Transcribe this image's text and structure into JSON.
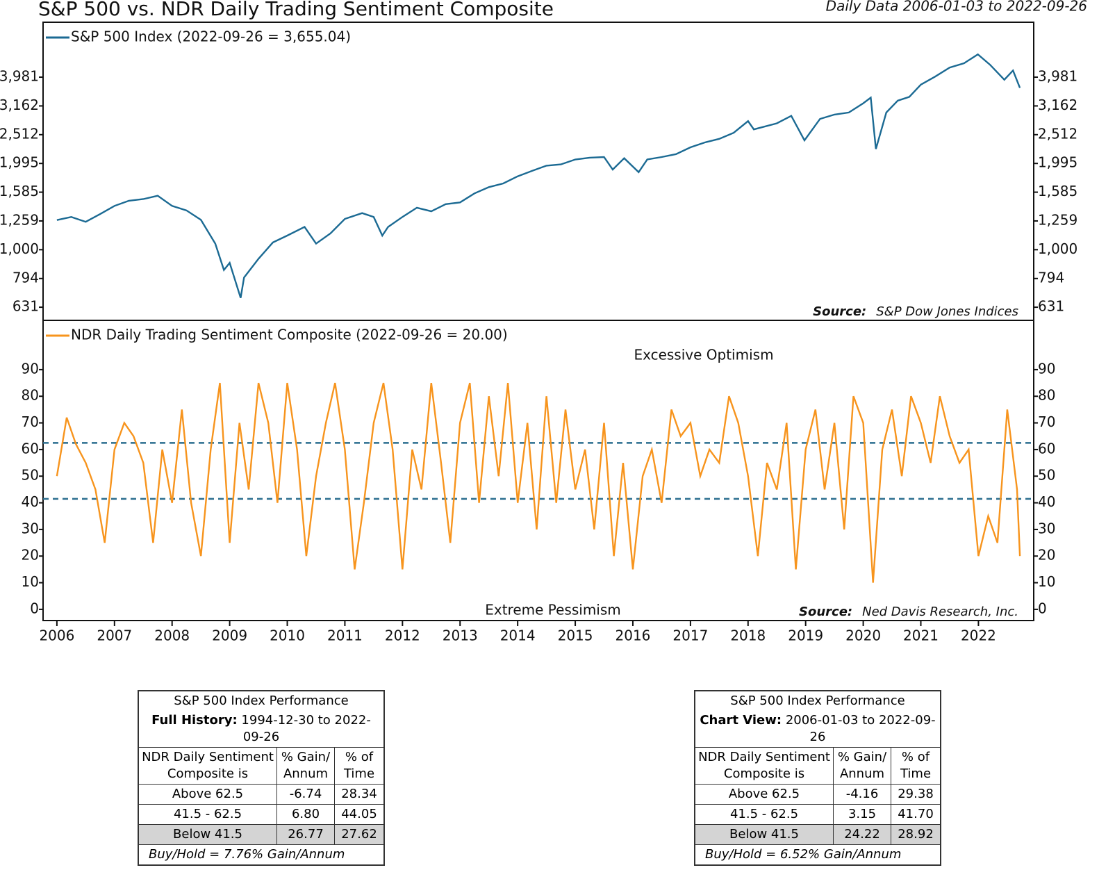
{
  "chart_data": [
    {
      "type": "line",
      "title": "S&P 500 vs. NDR Daily Trading Sentiment Composite",
      "subtitle": "Daily Data 2006-01-03 to 2022-09-26",
      "log_scale": true,
      "xlim": [
        2005.76,
        2022.96
      ],
      "ylim": [
        568,
        6180
      ],
      "yticks": [
        631,
        794,
        {
          "value": 1000,
          "label": "1,000"
        },
        {
          "value": 1259,
          "label": "1,259"
        },
        {
          "value": 1585,
          "label": "1,585"
        },
        {
          "value": 1995,
          "label": "1,995"
        },
        {
          "value": 2512,
          "label": "2,512"
        },
        {
          "value": 3162,
          "label": "3,162"
        },
        {
          "value": 3981,
          "label": "3,981"
        }
      ],
      "source": {
        "label": "Source:",
        "text": "S&P Dow Jones Indices"
      },
      "series": [
        {
          "name": "S&P 500 Index (2022-09-26 = 3,655.04)",
          "color": "#1b6a93",
          "x": [
            2006.0,
            2006.25,
            2006.5,
            2006.75,
            2007.0,
            2007.25,
            2007.5,
            2007.75,
            2008.0,
            2008.25,
            2008.5,
            2008.75,
            2008.9,
            2009.0,
            2009.19,
            2009.25,
            2009.5,
            2009.75,
            2010.0,
            2010.3,
            2010.5,
            2010.75,
            2011.0,
            2011.3,
            2011.5,
            2011.65,
            2011.75,
            2012.0,
            2012.25,
            2012.5,
            2012.75,
            2013.0,
            2013.25,
            2013.5,
            2013.75,
            2014.0,
            2014.25,
            2014.5,
            2014.75,
            2015.0,
            2015.25,
            2015.5,
            2015.65,
            2015.85,
            2016.1,
            2016.25,
            2016.5,
            2016.75,
            2017.0,
            2017.25,
            2017.5,
            2017.75,
            2018.0,
            2018.1,
            2018.5,
            2018.75,
            2018.98,
            2019.25,
            2019.5,
            2019.75,
            2020.0,
            2020.13,
            2020.22,
            2020.4,
            2020.6,
            2020.8,
            2021.0,
            2021.25,
            2021.5,
            2021.75,
            2021.99,
            2022.2,
            2022.45,
            2022.6,
            2022.72
          ],
          "values": [
            1268,
            1300,
            1250,
            1330,
            1420,
            1480,
            1500,
            1540,
            1420,
            1370,
            1270,
            1050,
            850,
            900,
            680,
            800,
            930,
            1060,
            1120,
            1200,
            1050,
            1140,
            1280,
            1340,
            1300,
            1120,
            1200,
            1300,
            1400,
            1360,
            1440,
            1460,
            1570,
            1650,
            1700,
            1800,
            1880,
            1960,
            1980,
            2060,
            2090,
            2100,
            1900,
            2080,
            1860,
            2060,
            2100,
            2150,
            2270,
            2360,
            2430,
            2550,
            2800,
            2620,
            2750,
            2920,
            2400,
            2850,
            2950,
            3000,
            3230,
            3380,
            2240,
            3000,
            3300,
            3400,
            3750,
            4000,
            4300,
            4450,
            4780,
            4400,
            3900,
            4200,
            3655
          ]
        }
      ]
    },
    {
      "type": "line",
      "xlim": [
        2005.76,
        2022.96
      ],
      "ylim": [
        -4.2,
        108.5
      ],
      "yticks": [
        0,
        10,
        20,
        30,
        40,
        50,
        60,
        70,
        80,
        90
      ],
      "xticks": [
        2006,
        2007,
        2008,
        2009,
        2010,
        2011,
        2012,
        2013,
        2014,
        2015,
        2016,
        2017,
        2018,
        2019,
        2020,
        2021,
        2022
      ],
      "hlines": [
        62.5,
        41.5
      ],
      "hline_color": "#2a6d8f",
      "annotations": [
        "Excessive Optimism",
        "Extreme Pessimism"
      ],
      "source": {
        "label": "Source:",
        "text": "Ned Davis Research, Inc."
      },
      "series": [
        {
          "name": "NDR Daily Trading Sentiment Composite (2022-09-26 = 20.00)",
          "color": "#f7941d",
          "x": [
            2006.0,
            2006.17,
            2006.33,
            2006.5,
            2006.67,
            2006.83,
            2007.0,
            2007.17,
            2007.33,
            2007.5,
            2007.67,
            2007.83,
            2008.0,
            2008.17,
            2008.33,
            2008.5,
            2008.67,
            2008.83,
            2009.0,
            2009.17,
            2009.33,
            2009.5,
            2009.67,
            2009.83,
            2010.0,
            2010.17,
            2010.33,
            2010.5,
            2010.67,
            2010.83,
            2011.0,
            2011.17,
            2011.33,
            2011.5,
            2011.67,
            2011.83,
            2012.0,
            2012.17,
            2012.33,
            2012.5,
            2012.67,
            2012.83,
            2013.0,
            2013.17,
            2013.33,
            2013.5,
            2013.67,
            2013.83,
            2014.0,
            2014.17,
            2014.33,
            2014.5,
            2014.67,
            2014.83,
            2015.0,
            2015.17,
            2015.33,
            2015.5,
            2015.67,
            2015.83,
            2016.0,
            2016.17,
            2016.33,
            2016.5,
            2016.67,
            2016.83,
            2017.0,
            2017.17,
            2017.33,
            2017.5,
            2017.67,
            2017.83,
            2018.0,
            2018.17,
            2018.33,
            2018.5,
            2018.67,
            2018.83,
            2019.0,
            2019.17,
            2019.33,
            2019.5,
            2019.67,
            2019.83,
            2020.0,
            2020.17,
            2020.33,
            2020.5,
            2020.67,
            2020.83,
            2021.0,
            2021.17,
            2021.33,
            2021.5,
            2021.67,
            2021.83,
            2022.0,
            2022.17,
            2022.33,
            2022.5,
            2022.67,
            2022.72
          ],
          "values": [
            50,
            72,
            62,
            55,
            45,
            25,
            60,
            70,
            65,
            55,
            25,
            60,
            40,
            75,
            40,
            20,
            60,
            85,
            25,
            70,
            45,
            85,
            70,
            40,
            85,
            60,
            20,
            50,
            70,
            85,
            60,
            15,
            40,
            70,
            85,
            60,
            15,
            60,
            45,
            85,
            55,
            25,
            70,
            85,
            40,
            80,
            50,
            85,
            40,
            70,
            30,
            80,
            40,
            75,
            45,
            60,
            30,
            70,
            20,
            55,
            15,
            50,
            60,
            40,
            75,
            65,
            70,
            50,
            60,
            55,
            80,
            70,
            50,
            20,
            55,
            45,
            70,
            15,
            60,
            75,
            45,
            70,
            30,
            80,
            70,
            10,
            60,
            75,
            50,
            80,
            70,
            55,
            80,
            65,
            55,
            60,
            20,
            35,
            25,
            75,
            45,
            20
          ]
        }
      ]
    }
  ],
  "tables": [
    {
      "title": "S&P 500 Index Performance",
      "period_label": "Full History:",
      "period": "1994-12-30 to 2022-09-26",
      "header": [
        "NDR Daily Sentiment Composite is",
        "% Gain/ Annum",
        "% of Time"
      ],
      "rows": [
        [
          "Above 62.5",
          "-6.74",
          "28.34"
        ],
        [
          "41.5 - 62.5",
          "6.80",
          "44.05"
        ],
        [
          "Below 41.5",
          "26.77",
          "27.62"
        ]
      ],
      "footer": "Buy/Hold = 7.76% Gain/Annum"
    },
    {
      "title": "S&P 500 Index Performance",
      "period_label": "Chart View:",
      "period": "2006-01-03 to 2022-09-26",
      "header": [
        "NDR Daily Sentiment Composite is",
        "% Gain/ Annum",
        "% of Time"
      ],
      "rows": [
        [
          "Above 62.5",
          "-4.16",
          "29.38"
        ],
        [
          "41.5 - 62.5",
          "3.15",
          "41.70"
        ],
        [
          "Below 41.5",
          "24.22",
          "28.92"
        ]
      ],
      "footer": "Buy/Hold = 6.52% Gain/Annum"
    }
  ]
}
